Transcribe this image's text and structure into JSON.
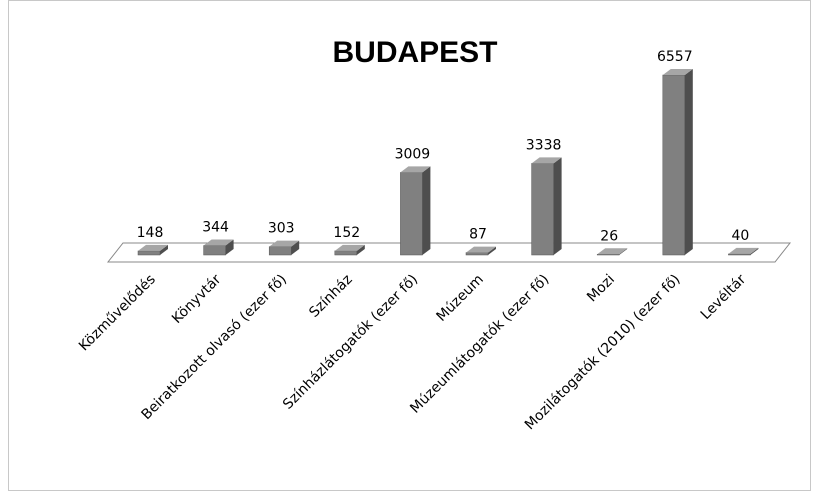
{
  "chart_data": {
    "type": "bar3d",
    "title": "BUDAPEST",
    "categories": [
      "Közművelődés",
      "Könyvtár",
      "Beiratkozott olvasó (ezer fő)",
      "Színház",
      "Színházlátogatók  (ezer fő)",
      "Múzeum",
      "Múzeumlátogatók  (ezer fő)",
      "Mozi",
      "Mozilátogatók  (2010) (ezer fő)",
      "Levéltár"
    ],
    "values": [
      148,
      344,
      303,
      152,
      3009,
      87,
      3338,
      26,
      6557,
      40
    ],
    "color": "#808080"
  }
}
